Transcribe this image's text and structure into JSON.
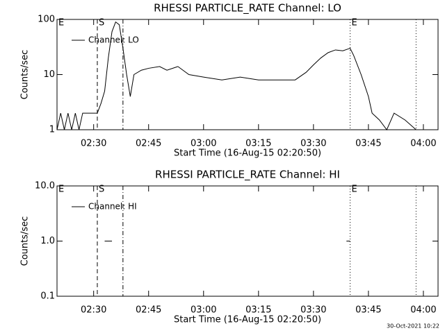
{
  "chart_data": [
    {
      "type": "line",
      "title": "RHESSI PARTICLE_RATE Channel: LO",
      "xlabel": "Start Time (16-Aug-15 02:20:50)",
      "ylabel": "Counts/sec",
      "x": [
        "02:20",
        "02:21",
        "02:22",
        "02:23",
        "02:24",
        "02:25",
        "02:26",
        "02:27",
        "02:28",
        "02:29",
        "02:30",
        "02:31",
        "02:32",
        "02:33",
        "02:34",
        "02:35",
        "02:36",
        "02:37",
        "02:38",
        "02:39",
        "02:40",
        "02:41",
        "02:43",
        "02:45",
        "02:48",
        "02:50",
        "02:53",
        "02:56",
        "03:00",
        "03:05",
        "03:10",
        "03:15",
        "03:20",
        "03:25",
        "03:28",
        "03:30",
        "03:32",
        "03:34",
        "03:36",
        "03:38",
        "03:40",
        "03:41",
        "03:43",
        "03:45",
        "03:46",
        "03:48",
        "03:50",
        "03:52",
        "03:55",
        "03:58"
      ],
      "series": [
        {
          "name": "Channel: LO",
          "color": "#000000",
          "values": [
            1,
            2,
            1,
            2,
            1,
            2,
            1,
            2,
            2,
            2,
            2,
            2,
            3,
            5,
            20,
            60,
            90,
            80,
            30,
            10,
            4,
            10,
            12,
            13,
            14,
            12,
            14,
            10,
            9,
            8,
            9,
            8,
            8,
            8,
            11,
            15,
            20,
            25,
            28,
            27,
            30,
            22,
            10,
            4,
            2,
            1.5,
            1,
            2,
            1.5,
            1
          ]
        }
      ],
      "xlim": [
        "02:20",
        "04:04"
      ],
      "xticks": [
        "02:30",
        "02:45",
        "03:00",
        "03:15",
        "03:30",
        "03:45",
        "04:00"
      ],
      "ylim": [
        1,
        100
      ],
      "yticks": [
        1,
        10,
        100
      ],
      "log_scale": true,
      "legend": "upper left",
      "markers": [
        {
          "x": "02:20",
          "style": "none",
          "label": "E"
        },
        {
          "x": "02:31",
          "style": "dashed",
          "label": "S"
        },
        {
          "x": "02:38",
          "style": "dashdot"
        },
        {
          "x": "03:40",
          "style": "dotted",
          "label": "E"
        },
        {
          "x": "03:58",
          "style": "dotted"
        }
      ]
    },
    {
      "type": "line",
      "title": "RHESSI PARTICLE_RATE Channel: HI",
      "xlabel": "Start Time (16-Aug-15 02:20:50)",
      "ylabel": "Counts/sec",
      "x": [
        "02:33",
        "02:35",
        "02:36",
        "03:39",
        "03:40"
      ],
      "series": [
        {
          "name": "Channel: HI",
          "color": "#000000",
          "values": [
            1,
            1,
            null,
            1,
            1
          ]
        }
      ],
      "xlim": [
        "02:20",
        "04:04"
      ],
      "xticks": [
        "02:30",
        "02:45",
        "03:00",
        "03:15",
        "03:30",
        "03:45",
        "04:00"
      ],
      "ylim": [
        0.1,
        10
      ],
      "yticks": [
        0.1,
        {
          "value": 1,
          "label": "1.0"
        },
        {
          "value": 10,
          "label": "10.0"
        }
      ],
      "log_scale": true,
      "legend": "upper left",
      "markers": [
        {
          "x": "02:20",
          "style": "none",
          "label": "E"
        },
        {
          "x": "02:31",
          "style": "dashed",
          "label": "S"
        },
        {
          "x": "02:38",
          "style": "dashdot"
        },
        {
          "x": "03:40",
          "style": "dotted",
          "label": "E"
        },
        {
          "x": "03:58",
          "style": "dotted"
        }
      ]
    }
  ],
  "footer": "30-Oct-2021 10:22"
}
